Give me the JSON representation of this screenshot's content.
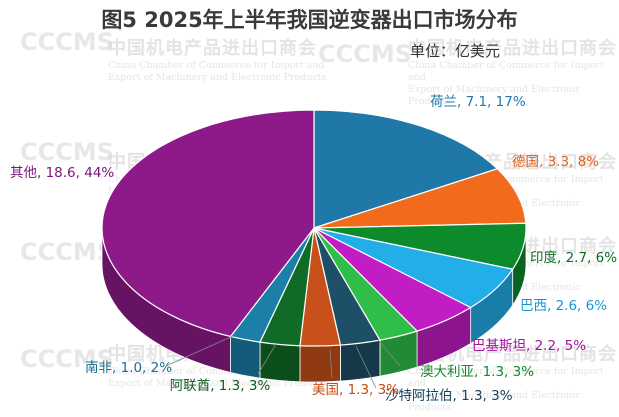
{
  "title": "图5  2025年上半年我国逆变器出口市场分布",
  "unit": "单位：亿美元",
  "watermark": {
    "logo": "CCCMS",
    "cn": "中国机电产品进出口商会",
    "en1": "China Chamber of Commerce for Import and",
    "en2": "Export of Machinery and Electronic Products"
  },
  "chart_data": {
    "type": "pie",
    "title": "图5  2025年上半年我国逆变器出口市场分布",
    "unit": "单位：亿美元",
    "slices": [
      {
        "name": "荷兰",
        "value": 7.1,
        "percent": 17,
        "label": "荷兰, 7.1, 17%",
        "color": "#1f78a8"
      },
      {
        "name": "德国",
        "value": 3.3,
        "percent": 8,
        "label": "德国, 3.3, 8%",
        "color": "#f26b1d"
      },
      {
        "name": "印度",
        "value": 2.7,
        "percent": 6,
        "label": "印度, 2.7, 6%",
        "color": "#0d8a2c"
      },
      {
        "name": "巴西",
        "value": 2.6,
        "percent": 6,
        "label": "巴西, 2.6, 6%",
        "color": "#22aee8"
      },
      {
        "name": "巴基斯坦",
        "value": 2.2,
        "percent": 5,
        "label": "巴基斯坦, 2.2, 5%",
        "color": "#c21cc4"
      },
      {
        "name": "澳大利亚",
        "value": 1.3,
        "percent": 3,
        "label": "澳大利亚, 1.3, 3%",
        "color": "#2fbf48"
      },
      {
        "name": "沙特阿拉伯",
        "value": 1.3,
        "percent": 3,
        "label": "沙特阿拉伯, 1.3, 3%",
        "color": "#1d4f66"
      },
      {
        "name": "美国",
        "value": 1.3,
        "percent": 3,
        "label": "美国, 1.3, 3%",
        "color": "#c8501a"
      },
      {
        "name": "阿联酋",
        "value": 1.3,
        "percent": 3,
        "label": "阿联酋, 1.3, 3%",
        "color": "#0f6b26"
      },
      {
        "name": "南非",
        "value": 1.0,
        "percent": 2,
        "label": "南非, 1.0, 2%",
        "color": "#1b7fa8"
      },
      {
        "name": "其他",
        "value": 18.6,
        "percent": 44,
        "label": "其他, 18.6, 44%",
        "color": "#8e1a8a"
      }
    ]
  }
}
